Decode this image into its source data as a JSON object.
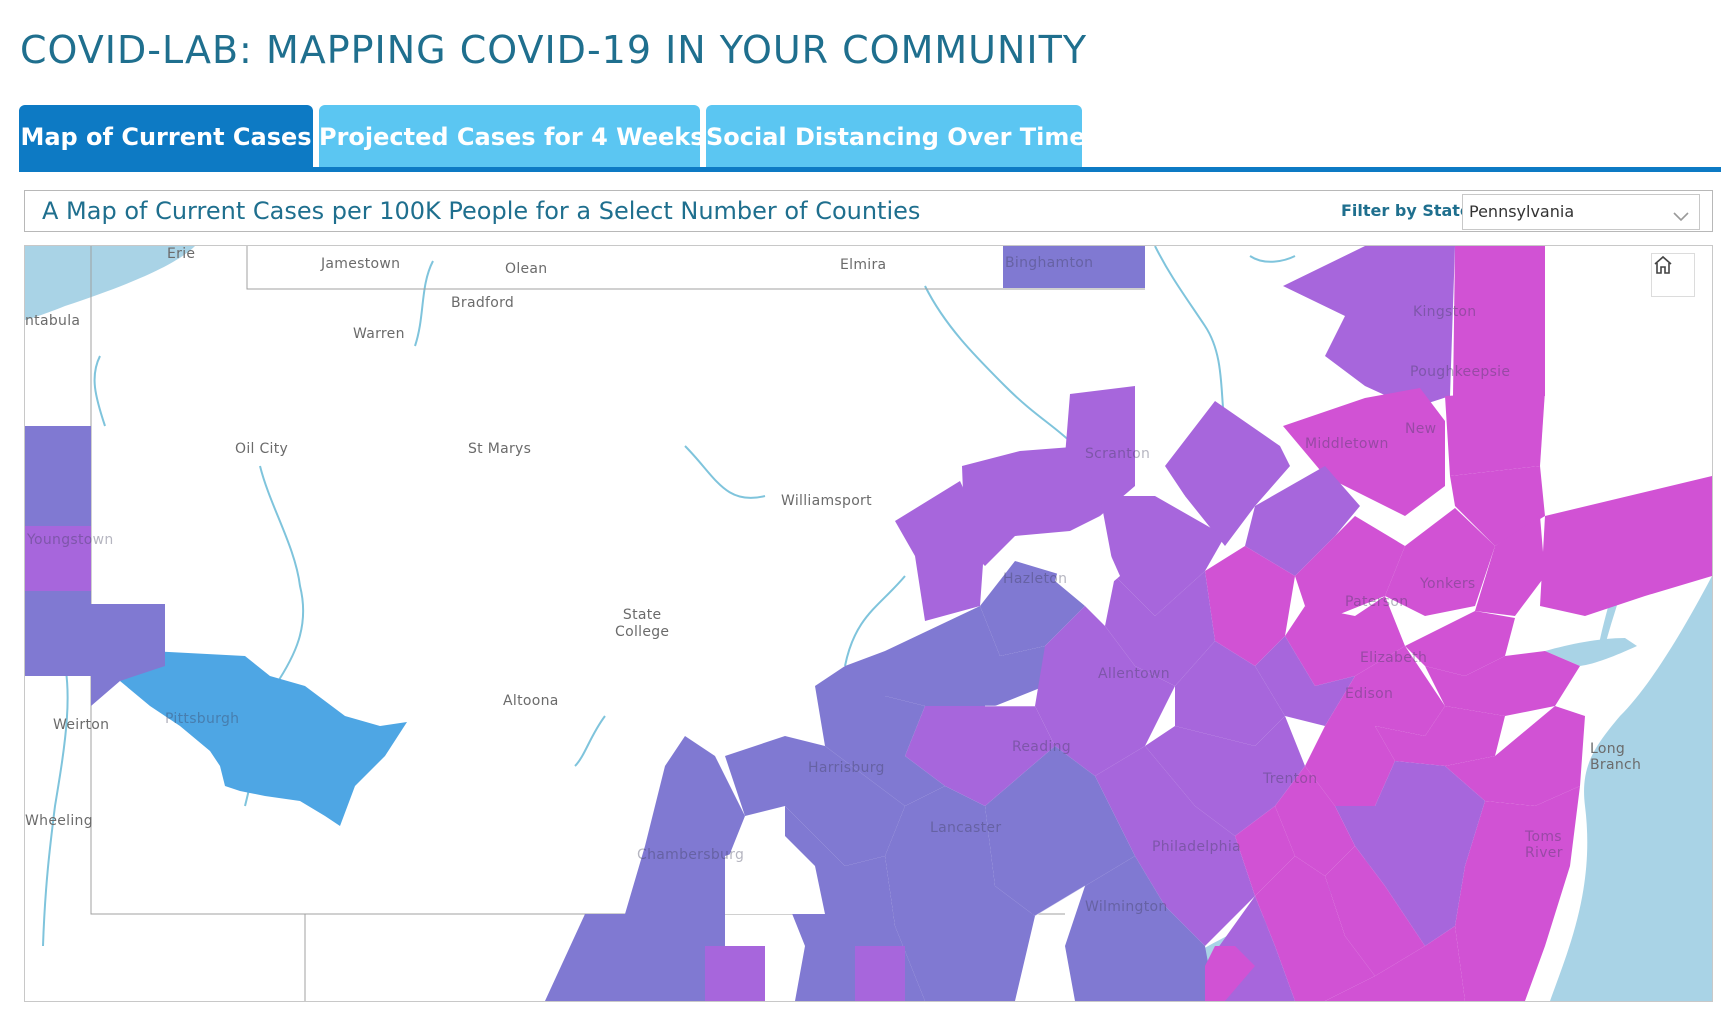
{
  "app": {
    "title": "COVID-LAB: MAPPING COVID-19 IN YOUR COMMUNITY"
  },
  "tabs": [
    {
      "label": "Map of Current Cases",
      "active": true
    },
    {
      "label": "Projected Cases for 4 Weeks",
      "active": false
    },
    {
      "label": "Social Distancing Over Time",
      "active": false
    }
  ],
  "filter": {
    "heading": "A Map of Current Cases per 100K People for a Select Number of Counties",
    "label": "Filter by State:",
    "selected_state": "Pennsylvania"
  },
  "map": {
    "home_icon": "home-icon",
    "colors": {
      "water": "#a9d3e6",
      "blue": "#4ea6e4",
      "indigo": "#8079d2",
      "purple": "#a766dc",
      "magenta": "#d152d4",
      "river": "#7fc4dc"
    },
    "city_labels": {
      "erie": "Erie",
      "jamestown": "Jamestown",
      "olean": "Olean",
      "elmira": "Elmira",
      "binghamton": "Binghamton",
      "ashtabula": "ntabula",
      "bradford": "Bradford",
      "warren": "Warren",
      "kingston": "Kingston",
      "poughkeepsie": "Poughkeepsie",
      "middletown": "Middletown",
      "newburgh": "New",
      "oil_city": "Oil City",
      "st_marys": "St Marys",
      "scranton": "Scranton",
      "williamsport": "Williamsport",
      "youngstown": "Youngstown",
      "hazleton": "Hazleton",
      "yonkers": "Yonkers",
      "paterson": "Paterson",
      "state_college": "State\nCollege",
      "elizabeth": "Elizabeth",
      "allentown": "Allentown",
      "edison": "Edison",
      "weirton": "Weirton",
      "altoona": "Altoona",
      "pittsburgh": "Pittsburgh",
      "reading": "Reading",
      "long_branch": "Long\nBranch",
      "harrisburg": "Harrisburg",
      "trenton": "Trenton",
      "lancaster": "Lancaster",
      "toms_river": "Toms\nRiver",
      "wheeling": "Wheeling",
      "chambersburg": "Chambersburg",
      "philadelphia": "Philadelphia",
      "wilmington": "Wilmington"
    }
  }
}
